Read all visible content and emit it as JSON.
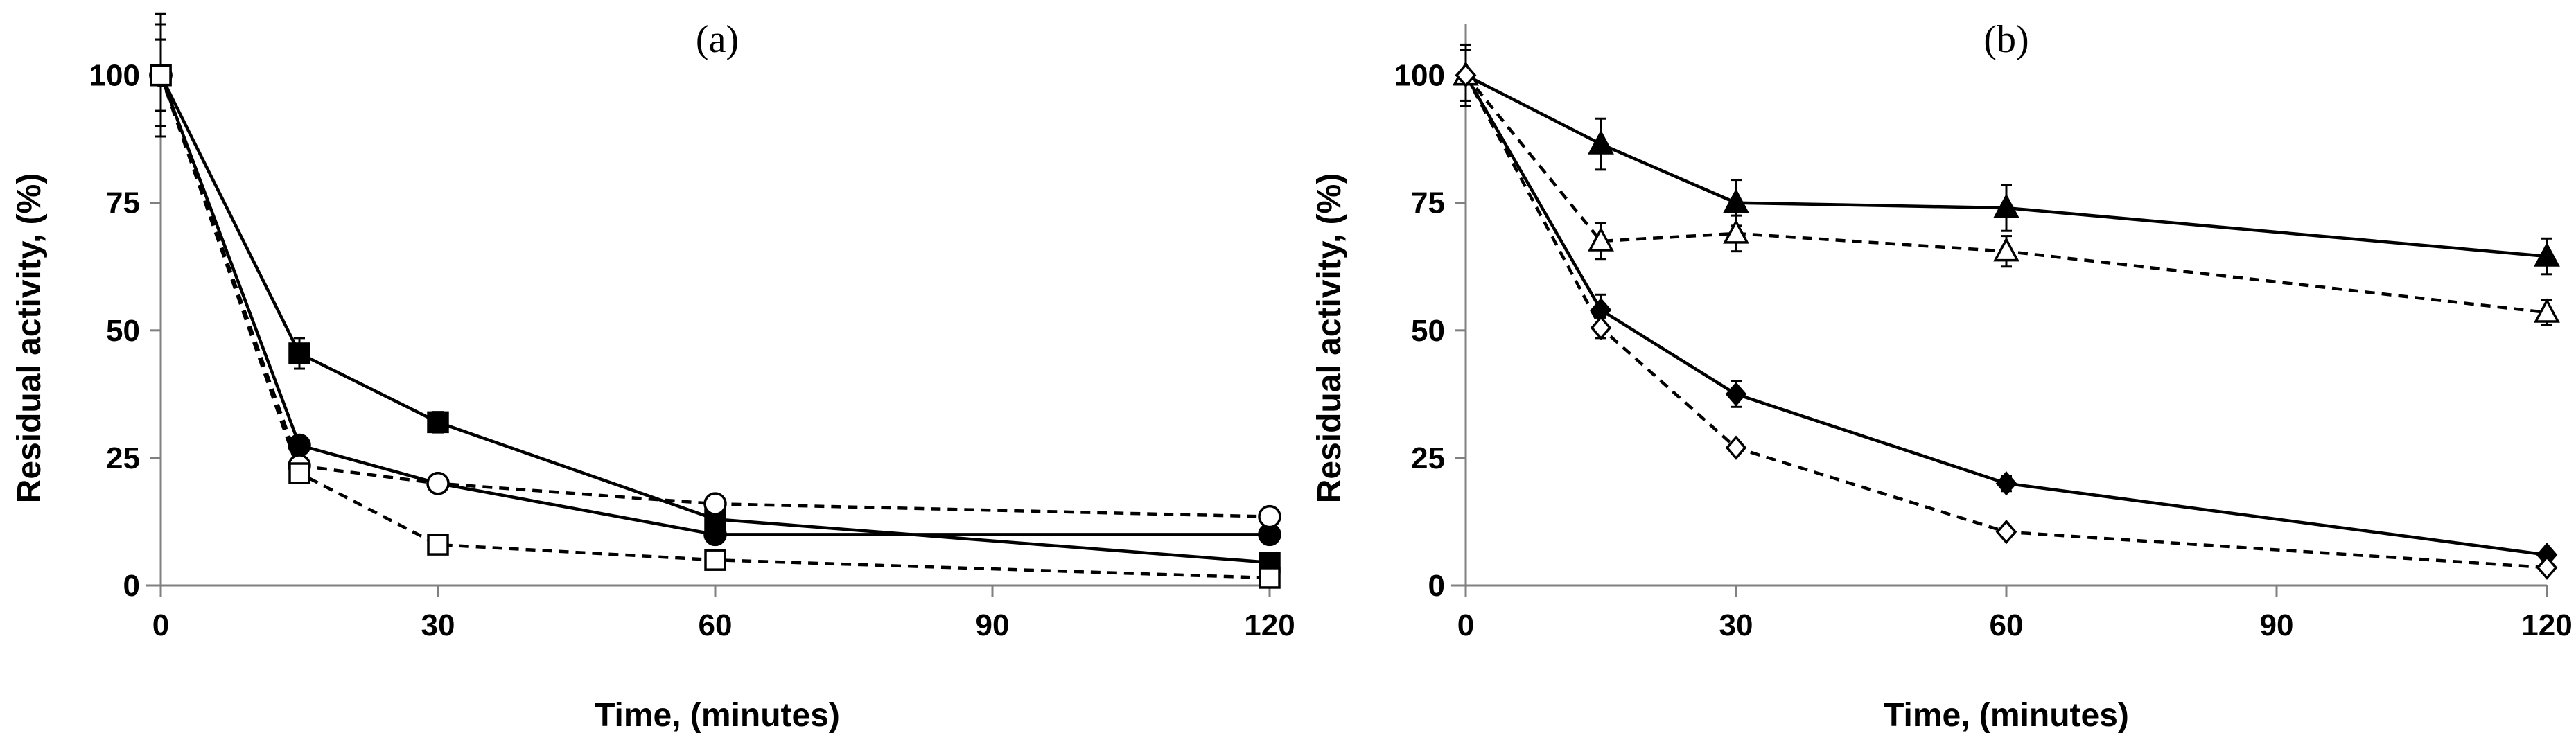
{
  "figure": {
    "colors": {
      "ink": "#000000",
      "axis": "#808080",
      "background": "#ffffff"
    }
  },
  "chart_data": [
    {
      "type": "line",
      "title": "(a)",
      "xlabel": "Time, (minutes)",
      "ylabel": "Residual activity, (%)",
      "xlim": [
        0,
        120
      ],
      "ylim": [
        0,
        110
      ],
      "x_ticks": [
        "0",
        "30",
        "60",
        "90",
        "120"
      ],
      "y_ticks": [
        "0",
        "25",
        "50",
        "75",
        "100"
      ],
      "series": [
        {
          "name": "filled-square",
          "marker": "square",
          "filled": true,
          "line": "solid",
          "x": [
            0,
            15,
            30,
            60,
            120
          ],
          "y": [
            100,
            45.5,
            32,
            13,
            4.5
          ],
          "err": [
            7,
            3,
            2,
            1,
            1
          ]
        },
        {
          "name": "filled-circle",
          "marker": "circle",
          "filled": true,
          "line": "solid",
          "x": [
            0,
            15,
            30,
            60,
            120
          ],
          "y": [
            100,
            27.5,
            20,
            10,
            10
          ],
          "err": [
            7,
            1.5,
            1,
            1,
            1
          ]
        },
        {
          "name": "open-circle",
          "marker": "circle",
          "filled": false,
          "line": "dashed",
          "x": [
            0,
            15,
            30,
            60,
            120
          ],
          "y": [
            100,
            23.5,
            20,
            16,
            13.5
          ],
          "err": [
            10,
            1.5,
            1,
            1,
            1
          ]
        },
        {
          "name": "open-square",
          "marker": "square",
          "filled": false,
          "line": "dashed",
          "x": [
            0,
            15,
            30,
            60,
            120
          ],
          "y": [
            100,
            22,
            8,
            5,
            1.5
          ],
          "err": [
            12,
            1.5,
            1,
            1,
            1
          ]
        }
      ]
    },
    {
      "type": "line",
      "title": "(b)",
      "xlabel": "Time, (minutes)",
      "ylabel": "Residual activity, (%)",
      "xlim": [
        0,
        120
      ],
      "ylim": [
        0,
        110
      ],
      "x_ticks": [
        "0",
        "30",
        "60",
        "90",
        "120"
      ],
      "y_ticks": [
        "0",
        "25",
        "50",
        "75",
        "100"
      ],
      "series": [
        {
          "name": "filled-triangle",
          "marker": "triangle",
          "filled": true,
          "line": "solid",
          "x": [
            0,
            15,
            30,
            60,
            120
          ],
          "y": [
            100,
            86.5,
            75,
            74,
            64.5
          ],
          "err": [
            6,
            5,
            4.5,
            4.5,
            3.5
          ]
        },
        {
          "name": "open-triangle",
          "marker": "triangle",
          "filled": false,
          "line": "dashed",
          "x": [
            0,
            15,
            30,
            60,
            120
          ],
          "y": [
            100,
            67.5,
            69,
            65.5,
            53.5
          ],
          "err": [
            6,
            3.5,
            3.5,
            3,
            2.5
          ]
        },
        {
          "name": "filled-diamond",
          "marker": "diamond",
          "filled": true,
          "line": "solid",
          "x": [
            0,
            15,
            30,
            60,
            120
          ],
          "y": [
            100,
            54,
            37.5,
            20,
            6
          ],
          "err": [
            5,
            3,
            2.5,
            1.5,
            1
          ]
        },
        {
          "name": "open-diamond",
          "marker": "diamond",
          "filled": false,
          "line": "dashed",
          "x": [
            0,
            15,
            30,
            60,
            120
          ],
          "y": [
            100,
            50.5,
            27,
            10.5,
            3.5
          ],
          "err": [
            5,
            2,
            1,
            1,
            1
          ]
        }
      ]
    }
  ]
}
